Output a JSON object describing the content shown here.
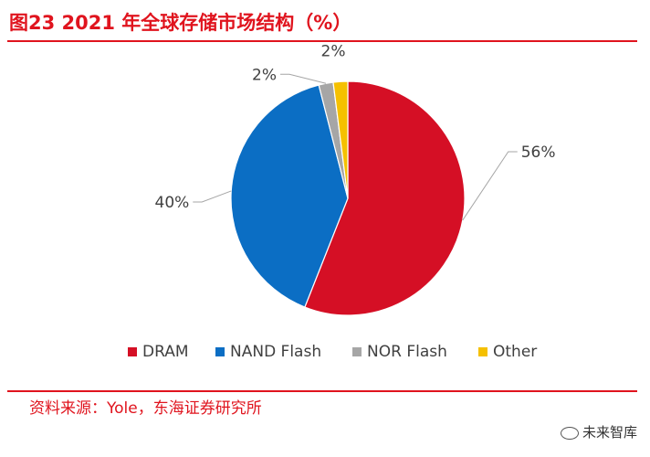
{
  "chart_data": {
    "type": "pie",
    "title": "图23  2021 年全球存储市场结构（%）",
    "categories": [
      "DRAM",
      "NAND Flash",
      "NOR Flash",
      "Other"
    ],
    "values": [
      56,
      40,
      2,
      2
    ],
    "data_labels": [
      "56%",
      "40%",
      "2%",
      "2%"
    ],
    "colors": [
      "#d50f25",
      "#0b6ec4",
      "#a6a6a6",
      "#f5c000"
    ],
    "legend_position": "bottom",
    "start": "12 o'clock, clockwise"
  },
  "source": "资料来源：Yole，东海证券研究所",
  "watermark": "未来智库"
}
